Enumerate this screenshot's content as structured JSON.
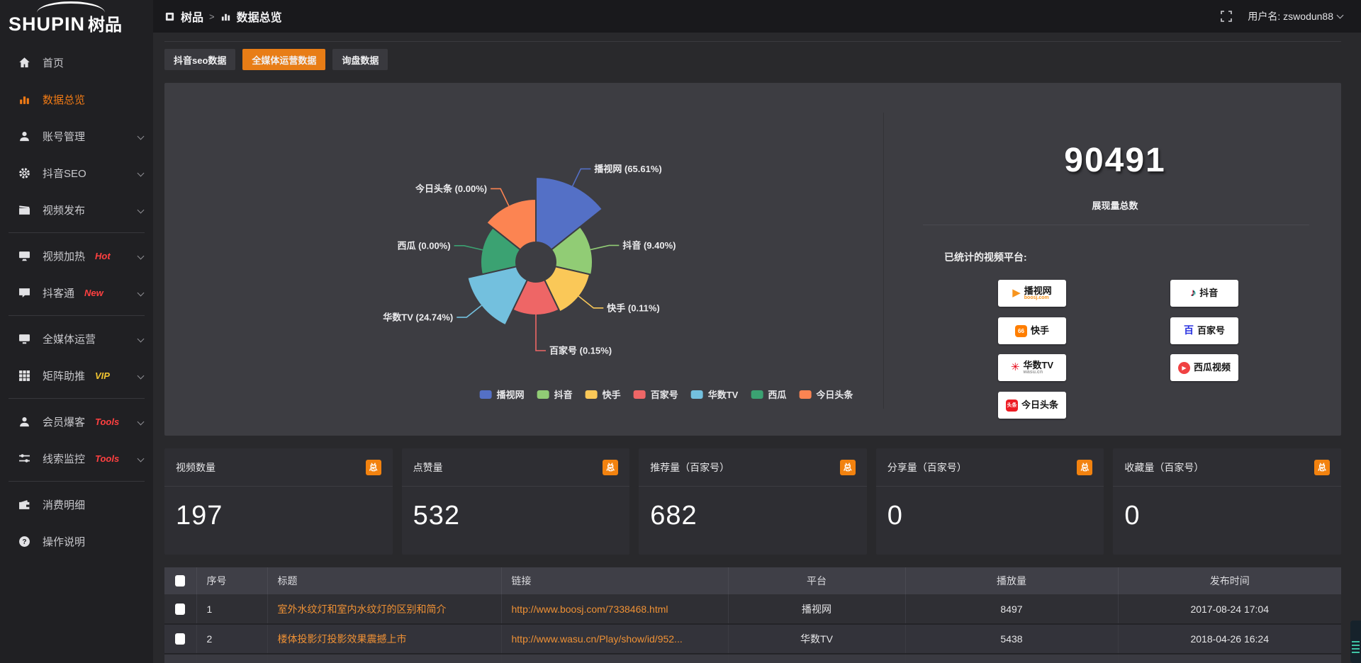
{
  "topbar": {
    "breadcrumb_root": "树品",
    "breadcrumb_sep": ">",
    "breadcrumb_current": "数据总览",
    "username": "用户名: zswodun88"
  },
  "logo": {
    "text_en": "SHUPIN",
    "text_cn": "树品"
  },
  "sidebar": {
    "items": [
      {
        "label": "首页",
        "icon": "home-icon",
        "badge": "",
        "badge_color": "",
        "chevron": false,
        "active": false,
        "divider_after": false
      },
      {
        "label": "数据总览",
        "icon": "chart-icon",
        "badge": "",
        "badge_color": "",
        "chevron": false,
        "active": true,
        "divider_after": false
      },
      {
        "label": "账号管理",
        "icon": "user-icon",
        "badge": "",
        "badge_color": "",
        "chevron": true,
        "active": false,
        "divider_after": false
      },
      {
        "label": "抖音SEO",
        "icon": "gear-icon",
        "badge": "",
        "badge_color": "",
        "chevron": true,
        "active": false,
        "divider_after": false
      },
      {
        "label": "视频发布",
        "icon": "publish-icon",
        "badge": "",
        "badge_color": "",
        "chevron": true,
        "active": false,
        "divider_after": true
      },
      {
        "label": "视频加热",
        "icon": "screen-icon",
        "badge": "Hot",
        "badge_color": "#ff4040",
        "chevron": true,
        "active": false,
        "divider_after": false
      },
      {
        "label": "抖客通",
        "icon": "chat-icon",
        "badge": "New",
        "badge_color": "#ff4040",
        "chevron": true,
        "active": false,
        "divider_after": true
      },
      {
        "label": "全媒体运营",
        "icon": "monitor-icon",
        "badge": "",
        "badge_color": "",
        "chevron": true,
        "active": false,
        "divider_after": false
      },
      {
        "label": "矩阵助推",
        "icon": "grid-icon",
        "badge": "VIP",
        "badge_color": "#f0c330",
        "chevron": true,
        "active": false,
        "divider_after": true
      },
      {
        "label": "会员爆客",
        "icon": "member-icon",
        "badge": "Tools",
        "badge_color": "#ff4040",
        "chevron": true,
        "active": false,
        "divider_after": false
      },
      {
        "label": "线索监控",
        "icon": "sliders-icon",
        "badge": "Tools",
        "badge_color": "#ff4040",
        "chevron": true,
        "active": false,
        "divider_after": true
      },
      {
        "label": "消费明细",
        "icon": "wallet-icon",
        "badge": "",
        "badge_color": "",
        "chevron": false,
        "active": false,
        "divider_after": false
      },
      {
        "label": "操作说明",
        "icon": "question-icon",
        "badge": "",
        "badge_color": "",
        "chevron": false,
        "active": false,
        "divider_after": false
      }
    ]
  },
  "tabs": [
    {
      "label": "抖音seo数据",
      "active": false
    },
    {
      "label": "全媒体运营数据",
      "active": true
    },
    {
      "label": "询盘数据",
      "active": false
    }
  ],
  "chart_data": {
    "type": "pie",
    "subtype": "nightingale-rose",
    "equal_angles": true,
    "inner_radius_px": 28,
    "legend_position": "bottom",
    "series": [
      {
        "name": "播视网",
        "value": 65.61,
        "pct_label": "65.61%",
        "color": "#5470c6",
        "radius_px": 120
      },
      {
        "name": "抖音",
        "value": 9.4,
        "pct_label": "9.40%",
        "color": "#91cc75",
        "radius_px": 80
      },
      {
        "name": "快手",
        "value": 0.11,
        "pct_label": "0.11%",
        "color": "#fac858",
        "radius_px": 78
      },
      {
        "name": "百家号",
        "value": 0.15,
        "pct_label": "0.15%",
        "color": "#ee6666",
        "radius_px": 75
      },
      {
        "name": "华数TV",
        "value": 24.74,
        "pct_label": "24.74%",
        "color": "#73c0de",
        "radius_px": 99
      },
      {
        "name": "西瓜",
        "value": 0.0,
        "pct_label": "0.00%",
        "color": "#3ba272",
        "radius_px": 78
      },
      {
        "name": "今日头条",
        "value": 0.0,
        "pct_label": "0.00%",
        "color": "#fc8452",
        "radius_px": 89
      }
    ]
  },
  "summary": {
    "total_value": "90491",
    "total_label": "展现量总数",
    "platforms_title": "已统计的视频平台:",
    "platform_badges": [
      {
        "name": "播视网",
        "sub": "boosj.com",
        "logo": "boosj-logo",
        "col": 0,
        "row": 0
      },
      {
        "name": "抖音",
        "sub": "",
        "logo": "douyin-logo",
        "col": 1,
        "row": 0
      },
      {
        "name": "快手",
        "sub": "",
        "logo": "kuaishou-logo",
        "col": 0,
        "row": 1
      },
      {
        "name": "百家号",
        "sub": "",
        "logo": "baijiahao-logo",
        "col": 1,
        "row": 1
      },
      {
        "name": "华数TV",
        "sub": "wasu.cn",
        "logo": "wasu-logo",
        "col": 0,
        "row": 2
      },
      {
        "name": "西瓜视频",
        "sub": "",
        "logo": "xigua-logo",
        "col": 1,
        "row": 2
      },
      {
        "name": "今日头条",
        "sub": "",
        "logo": "toutiao-logo",
        "col": 0,
        "row": 3
      }
    ]
  },
  "stat_cards": [
    {
      "label": "视频数量",
      "badge": "总",
      "value": "197"
    },
    {
      "label": "点赞量",
      "badge": "总",
      "value": "532"
    },
    {
      "label": "推荐量（百家号）",
      "badge": "总",
      "value": "682"
    },
    {
      "label": "分享量（百家号）",
      "badge": "总",
      "value": "0"
    },
    {
      "label": "收藏量（百家号）",
      "badge": "总",
      "value": "0"
    }
  ],
  "table": {
    "headers": [
      "序号",
      "标题",
      "链接",
      "平台",
      "播放量",
      "发布时间"
    ],
    "rows": [
      {
        "num": "1",
        "title": "室外水纹灯和室内水纹灯的区别和简介",
        "link": "http://www.boosj.com/7338468.html",
        "platform": "播视网",
        "plays": "8497",
        "time": "2017-08-24 17:04"
      },
      {
        "num": "2",
        "title": "楼体投影灯投影效果震撼上市",
        "link": "http://www.wasu.cn/Play/show/id/952...",
        "platform": "华数TV",
        "plays": "5438",
        "time": "2018-04-26 16:24"
      }
    ]
  },
  "colors": {
    "accent_orange": "#e87d16",
    "link_orange": "#ef9135",
    "panel_bg": "#3d3d42",
    "page_bg": "#29292c",
    "sidebar_bg": "#202023",
    "topbar_bg": "#19191c"
  }
}
